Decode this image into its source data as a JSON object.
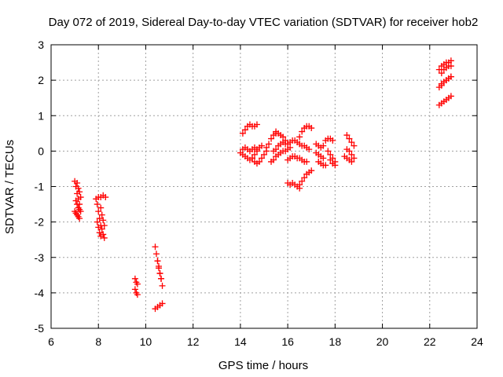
{
  "chart_data": {
    "type": "scatter",
    "title": "Day 072 of 2019, Sidereal Day-to-day VTEC variation (SDTVAR) for receiver hob2",
    "xlabel": "GPS time / hours",
    "ylabel": "SDTVAR / TECUs",
    "xlim": [
      6,
      24
    ],
    "ylim": [
      -5,
      3
    ],
    "xticks": [
      "6",
      "8",
      "10",
      "12",
      "14",
      "16",
      "18",
      "20",
      "22",
      "24"
    ],
    "yticks": [
      "-5",
      "-4",
      "-3",
      "-2",
      "-1",
      "0",
      "1",
      "2",
      "3"
    ],
    "grid": true,
    "marker": "plus",
    "color": "#ff0000",
    "segments": [
      {
        "x": [
          7.0,
          7.05,
          7.1,
          7.15,
          7.2
        ],
        "y": [
          -0.85,
          -1.0,
          -1.2,
          -1.35,
          -1.5
        ]
      },
      {
        "x": [
          7.0,
          7.05,
          7.1,
          7.15,
          7.2
        ],
        "y": [
          -1.7,
          -1.75,
          -1.8,
          -1.85,
          -1.9
        ]
      },
      {
        "x": [
          7.1,
          7.15,
          7.2,
          7.25
        ],
        "y": [
          -0.9,
          -1.05,
          -1.15,
          -1.3
        ]
      },
      {
        "x": [
          7.05,
          7.1,
          7.15,
          7.2,
          7.25
        ],
        "y": [
          -1.4,
          -1.5,
          -1.6,
          -1.65,
          -1.7
        ]
      },
      {
        "x": [
          7.9,
          8.0,
          8.1,
          8.2,
          8.3
        ],
        "y": [
          -1.35,
          -1.3,
          -1.3,
          -1.25,
          -1.3
        ]
      },
      {
        "x": [
          7.95,
          8.0,
          8.05,
          8.1,
          8.15,
          8.2,
          8.25
        ],
        "y": [
          -1.5,
          -1.7,
          -1.9,
          -2.1,
          -2.2,
          -2.35,
          -2.45
        ]
      },
      {
        "x": [
          8.1,
          8.15,
          8.2,
          8.25
        ],
        "y": [
          -1.6,
          -1.8,
          -1.95,
          -2.1
        ]
      },
      {
        "x": [
          7.95,
          8.0,
          8.05,
          8.1
        ],
        "y": [
          -2.0,
          -2.15,
          -2.3,
          -2.4
        ]
      },
      {
        "x": [
          9.55,
          9.6,
          9.65
        ],
        "y": [
          -3.6,
          -3.7,
          -3.75
        ]
      },
      {
        "x": [
          9.55,
          9.6,
          9.65
        ],
        "y": [
          -3.9,
          -4.0,
          -4.05
        ]
      },
      {
        "x": [
          10.4,
          10.45,
          10.5,
          10.55,
          10.6,
          10.65
        ],
        "y": [
          -2.7,
          -2.9,
          -3.1,
          -3.3,
          -3.45,
          -3.6
        ]
      },
      {
        "x": [
          10.5,
          10.55,
          10.6,
          10.65,
          10.7
        ],
        "y": [
          -3.1,
          -3.25,
          -3.45,
          -3.6,
          -3.8
        ]
      },
      {
        "x": [
          10.4,
          10.5,
          10.6,
          10.7
        ],
        "y": [
          -4.45,
          -4.4,
          -4.35,
          -4.3
        ]
      },
      {
        "x": [
          14.0,
          14.1,
          14.2,
          14.3,
          14.4,
          14.5,
          14.6,
          14.7
        ],
        "y": [
          -0.05,
          0.05,
          0.1,
          0.05,
          0.0,
          0.05,
          0.1,
          0.05
        ]
      },
      {
        "x": [
          14.1,
          14.2,
          14.3,
          14.4,
          14.5,
          14.6,
          14.7,
          14.8,
          14.9
        ],
        "y": [
          -0.1,
          -0.15,
          -0.2,
          -0.25,
          -0.2,
          -0.1,
          0.0,
          0.1,
          0.15
        ]
      },
      {
        "x": [
          14.1,
          14.2,
          14.3,
          14.4,
          14.5,
          14.6,
          14.7
        ],
        "y": [
          0.5,
          0.6,
          0.7,
          0.75,
          0.7,
          0.7,
          0.75
        ]
      },
      {
        "x": [
          14.5,
          14.6,
          14.7,
          14.8,
          14.9,
          15.0,
          15.1
        ],
        "y": [
          -0.2,
          -0.3,
          -0.35,
          -0.3,
          -0.2,
          -0.1,
          0.0
        ]
      },
      {
        "x": [
          15.1,
          15.2,
          15.3,
          15.4,
          15.5
        ],
        "y": [
          0.1,
          0.2,
          0.35,
          0.45,
          0.5
        ]
      },
      {
        "x": [
          15.5,
          15.6,
          15.7,
          15.8,
          15.9,
          16.0
        ],
        "y": [
          0.55,
          0.5,
          0.45,
          0.4,
          0.3,
          0.2
        ]
      },
      {
        "x": [
          15.3,
          15.4,
          15.5,
          15.6,
          15.7,
          15.8,
          15.9,
          16.0,
          16.1
        ],
        "y": [
          -0.3,
          -0.25,
          -0.15,
          -0.1,
          -0.05,
          0.0,
          0.0,
          0.05,
          0.1
        ]
      },
      {
        "x": [
          15.4,
          15.5,
          15.6,
          15.7,
          15.8,
          15.9
        ],
        "y": [
          0.0,
          0.05,
          0.15,
          0.2,
          0.25,
          0.2
        ]
      },
      {
        "x": [
          16.0,
          16.1,
          16.2,
          16.3,
          16.4,
          16.5,
          16.6,
          16.7,
          16.8,
          16.9
        ],
        "y": [
          0.2,
          0.25,
          0.3,
          0.3,
          0.25,
          0.2,
          0.15,
          0.15,
          0.1,
          0.05
        ]
      },
      {
        "x": [
          16.0,
          16.1,
          16.2,
          16.3,
          16.4,
          16.5,
          16.6,
          16.7,
          16.8
        ],
        "y": [
          -0.25,
          -0.2,
          -0.15,
          -0.15,
          -0.2,
          -0.2,
          -0.25,
          -0.3,
          -0.3
        ]
      },
      {
        "x": [
          16.0,
          16.1,
          16.2,
          16.3,
          16.4,
          16.5
        ],
        "y": [
          -0.9,
          -0.95,
          -0.9,
          -0.95,
          -1.0,
          -1.05
        ]
      },
      {
        "x": [
          16.5,
          16.6,
          16.7,
          16.8,
          16.9,
          17.0
        ],
        "y": [
          -0.95,
          -0.85,
          -0.75,
          -0.65,
          -0.6,
          -0.55
        ]
      },
      {
        "x": [
          16.5,
          16.6,
          16.7,
          16.8,
          16.9,
          17.0
        ],
        "y": [
          0.4,
          0.55,
          0.65,
          0.7,
          0.7,
          0.65
        ]
      },
      {
        "x": [
          17.2,
          17.3,
          17.4,
          17.5
        ],
        "y": [
          0.2,
          0.15,
          0.1,
          0.15
        ]
      },
      {
        "x": [
          17.2,
          17.3,
          17.4,
          17.5
        ],
        "y": [
          -0.05,
          -0.1,
          -0.15,
          -0.2
        ]
      },
      {
        "x": [
          17.3,
          17.4,
          17.5,
          17.6
        ],
        "y": [
          -0.3,
          -0.35,
          -0.4,
          -0.4
        ]
      },
      {
        "x": [
          17.6,
          17.7,
          17.8,
          17.9
        ],
        "y": [
          0.3,
          0.35,
          0.35,
          0.3
        ]
      },
      {
        "x": [
          17.7,
          17.8,
          17.9,
          18.0
        ],
        "y": [
          0.0,
          -0.1,
          -0.2,
          -0.3
        ]
      },
      {
        "x": [
          17.8,
          17.9,
          18.0
        ],
        "y": [
          -0.25,
          -0.35,
          -0.4
        ]
      },
      {
        "x": [
          18.5,
          18.6,
          18.7,
          18.8
        ],
        "y": [
          0.45,
          0.35,
          0.25,
          0.15
        ]
      },
      {
        "x": [
          18.5,
          18.6,
          18.7,
          18.8
        ],
        "y": [
          0.05,
          0.0,
          -0.1,
          -0.2
        ]
      },
      {
        "x": [
          18.4,
          18.5,
          18.6,
          18.7
        ],
        "y": [
          -0.15,
          -0.2,
          -0.25,
          -0.3
        ]
      },
      {
        "x": [
          22.4,
          22.5,
          22.6,
          22.7,
          22.8,
          22.9
        ],
        "y": [
          2.3,
          2.4,
          2.45,
          2.5,
          2.5,
          2.55
        ]
      },
      {
        "x": [
          22.5,
          22.6,
          22.7,
          22.8,
          22.9
        ],
        "y": [
          2.2,
          2.3,
          2.35,
          2.4,
          2.4
        ]
      },
      {
        "x": [
          22.4,
          22.5,
          22.6,
          22.7,
          22.8,
          22.9
        ],
        "y": [
          1.8,
          1.9,
          1.95,
          2.0,
          2.05,
          2.1
        ]
      },
      {
        "x": [
          22.5,
          22.6,
          22.7,
          22.8,
          22.9
        ],
        "y": [
          1.85,
          1.95,
          2.0,
          2.05,
          2.1
        ]
      },
      {
        "x": [
          22.4,
          22.5,
          22.6,
          22.7,
          22.8,
          22.9
        ],
        "y": [
          1.3,
          1.35,
          1.4,
          1.45,
          1.5,
          1.55
        ]
      }
    ]
  }
}
